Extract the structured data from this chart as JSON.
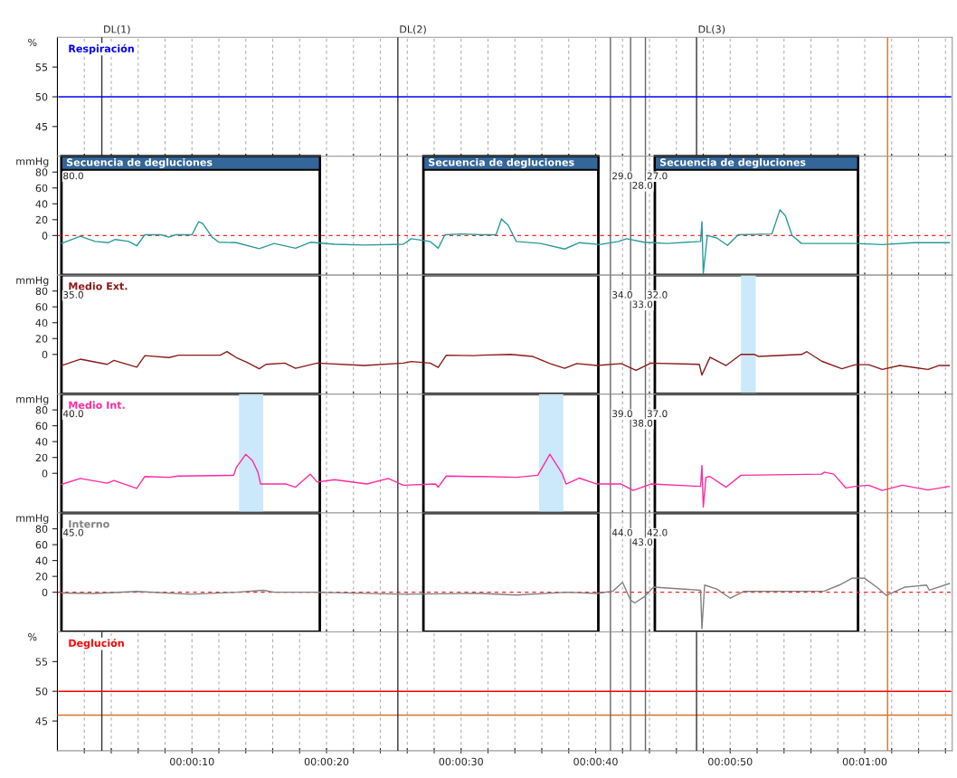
{
  "chart_data": [
    {
      "type": "line",
      "ylabel": "%",
      "xlim": [
        0,
        66.5
      ],
      "ylim": [
        40,
        60
      ],
      "yticks": [
        45,
        50,
        55
      ],
      "grid": "x",
      "tick_labels": "y",
      "xticks": [
        {
          "value": 2,
          "label": null
        },
        {
          "value": 4,
          "label": null
        },
        {
          "value": 6,
          "label": null
        },
        {
          "value": 8,
          "label": null
        },
        {
          "value": 10,
          "label": null
        },
        {
          "value": 12,
          "label": null
        },
        {
          "value": 14,
          "label": null
        },
        {
          "value": 16,
          "label": null
        },
        {
          "value": 18,
          "label": null
        },
        {
          "value": 20,
          "label": null
        },
        {
          "value": 22,
          "label": null
        },
        {
          "value": 24,
          "label": null
        },
        {
          "value": 26,
          "label": null
        },
        {
          "value": 28,
          "label": null
        },
        {
          "value": 30,
          "label": null
        },
        {
          "value": 32,
          "label": null
        },
        {
          "value": 34,
          "label": null
        },
        {
          "value": 36,
          "label": null
        },
        {
          "value": 38,
          "label": null
        },
        {
          "value": 40,
          "label": null
        },
        {
          "value": 42,
          "label": null
        },
        {
          "value": 44,
          "label": null
        },
        {
          "value": 46,
          "label": null
        },
        {
          "value": 48,
          "label": null
        },
        {
          "value": 50,
          "label": null
        },
        {
          "value": 52,
          "label": null
        },
        {
          "value": 54,
          "label": null
        },
        {
          "value": 56,
          "label": null
        },
        {
          "value": 58,
          "label": null
        },
        {
          "value": 60,
          "label": null
        },
        {
          "value": 62,
          "label": null
        },
        {
          "value": 64,
          "label": null
        },
        {
          "value": 66,
          "label": null
        }
      ],
      "series": [
        {
          "name": "Respiración",
          "color": "#0000ff",
          "x": [
            0.1,
            10,
            20,
            30,
            40,
            50,
            60,
            66.4
          ],
          "values": [
            50,
            50,
            50,
            50,
            50,
            50,
            50,
            50
          ]
        }
      ],
      "ref_lines": [
        {
          "axis": "x",
          "value": 3.3,
          "label": "DL(1)",
          "color": "#333333"
        },
        {
          "axis": "x",
          "value": 25.3,
          "label": "DL(2)",
          "color": "#333333"
        },
        {
          "axis": "x",
          "value": 47.5,
          "label": "DL(3)",
          "color": "#333333"
        },
        {
          "axis": "x",
          "value": 41.1,
          "color": "#666666"
        },
        {
          "axis": "x",
          "value": 42.6,
          "color": "#666666"
        },
        {
          "axis": "x",
          "value": 43.7,
          "color": "#666666"
        },
        {
          "axis": "x",
          "value": 61.7,
          "color": "#e0702a"
        }
      ]
    },
    {
      "type": "line",
      "ylabel": "mmHg",
      "xlim": [
        0,
        66.5
      ],
      "ylim": [
        -50,
        100
      ],
      "yticks": [
        0,
        20,
        40,
        60,
        80
      ],
      "grid": "x",
      "tick_labels": "y",
      "xticks": [
        {
          "value": 2,
          "label": null
        },
        {
          "value": 4,
          "label": null
        },
        {
          "value": 6,
          "label": null
        },
        {
          "value": 8,
          "label": null
        },
        {
          "value": 10,
          "label": null
        },
        {
          "value": 12,
          "label": null
        },
        {
          "value": 14,
          "label": null
        },
        {
          "value": 16,
          "label": null
        },
        {
          "value": 18,
          "label": null
        },
        {
          "value": 20,
          "label": null
        },
        {
          "value": 22,
          "label": null
        },
        {
          "value": 24,
          "label": null
        },
        {
          "value": 26,
          "label": null
        },
        {
          "value": 28,
          "label": null
        },
        {
          "value": 30,
          "label": null
        },
        {
          "value": 32,
          "label": null
        },
        {
          "value": 34,
          "label": null
        },
        {
          "value": 36,
          "label": null
        },
        {
          "value": 38,
          "label": null
        },
        {
          "value": 40,
          "label": null
        },
        {
          "value": 42,
          "label": null
        },
        {
          "value": 44,
          "label": null
        },
        {
          "value": 46,
          "label": null
        },
        {
          "value": 48,
          "label": null
        },
        {
          "value": 50,
          "label": null
        },
        {
          "value": 52,
          "label": null
        },
        {
          "value": 54,
          "label": null
        },
        {
          "value": 56,
          "label": null
        },
        {
          "value": 58,
          "label": null
        },
        {
          "value": 60,
          "label": null
        },
        {
          "value": 62,
          "label": null
        },
        {
          "value": 64,
          "label": null
        },
        {
          "value": 66,
          "label": null
        }
      ],
      "series": [
        {
          "color": "#2a9a9a",
          "x": [
            0.3,
            1.7,
            2.8,
            3.8,
            4.3,
            5.3,
            5.9,
            6.5,
            7.7,
            8.3,
            8.8,
            10,
            10.5,
            10.8,
            11.5,
            12,
            13.3,
            15,
            16.1,
            17.7,
            18.8,
            20.6,
            22.8,
            25.7,
            26.3,
            27.7,
            28.3,
            28.8,
            30.1,
            31.5,
            32.6,
            33,
            33.5,
            34.1,
            35.9,
            37.7,
            38.8,
            40.3,
            41.7,
            42.3,
            43.6,
            45.3,
            47.8,
            47.9,
            48,
            48.3,
            49,
            49.8,
            50.6,
            53.1,
            53.7,
            54.1,
            54.6,
            55.3,
            59.3,
            61.3,
            63.7,
            66.3
          ],
          "values": [
            -10,
            -1,
            -7.5,
            -9,
            -5,
            -7.5,
            -13,
            1,
            1,
            -2,
            1,
            1,
            17.5,
            15,
            -2,
            -8.5,
            -9,
            -16.5,
            -10,
            -16,
            -8.5,
            -11,
            -12,
            -11,
            -4,
            -7.5,
            -16,
            1,
            2,
            1,
            1,
            21,
            13,
            -7.5,
            -10,
            -17,
            -9,
            -11.5,
            -7.5,
            -4,
            -8.5,
            -10,
            -7.5,
            17.5,
            -47.5,
            0,
            -3,
            -12.5,
            1,
            2,
            32.5,
            25,
            0,
            -10,
            -10,
            -11.5,
            -9,
            -9
          ]
        }
      ],
      "bands": [
        {
          "axis": "x",
          "from": 0.3,
          "to": 19.5,
          "label": "Secuencia de degluciones",
          "color": "#ffffff"
        },
        {
          "axis": "x",
          "from": 27.2,
          "to": 40.2,
          "label": "Secuencia de degluciones",
          "color": "#ffffff"
        },
        {
          "axis": "x",
          "from": 44.4,
          "to": 59.5,
          "label": "Secuencia de degluciones",
          "color": "#ffffff"
        }
      ],
      "ref_lines": [
        {
          "axis": "y",
          "value": 0,
          "color": "#ff2020",
          "line_style": "dashed"
        },
        {
          "axis": "x",
          "value": 25.3,
          "color": "#333333"
        },
        {
          "axis": "x",
          "value": 41.1,
          "color": "#666666"
        },
        {
          "axis": "x",
          "value": 42.6,
          "color": "#666666"
        },
        {
          "axis": "x",
          "value": 43.7,
          "color": "#666666"
        },
        {
          "axis": "x",
          "value": 61.7,
          "color": "#e0702a"
        }
      ],
      "annotations": [
        {
          "text": "80.0",
          "x": 0.3,
          "y": 80
        },
        {
          "text": "29.0",
          "x": 41.1,
          "y": 80
        },
        {
          "text": "28.0",
          "x": 42.6,
          "y": 68
        },
        {
          "text": "27.0",
          "x": 43.7,
          "y": 80
        }
      ]
    },
    {
      "type": "line",
      "ylabel": "mmHg",
      "xlim": [
        0,
        66.5
      ],
      "ylim": [
        -50,
        100
      ],
      "yticks": [
        0,
        20,
        40,
        60,
        80
      ],
      "grid": "x",
      "tick_labels": "y",
      "xticks": [
        {
          "value": 2,
          "label": null
        },
        {
          "value": 4,
          "label": null
        },
        {
          "value": 6,
          "label": null
        },
        {
          "value": 8,
          "label": null
        },
        {
          "value": 10,
          "label": null
        },
        {
          "value": 12,
          "label": null
        },
        {
          "value": 14,
          "label": null
        },
        {
          "value": 16,
          "label": null
        },
        {
          "value": 18,
          "label": null
        },
        {
          "value": 20,
          "label": null
        },
        {
          "value": 22,
          "label": null
        },
        {
          "value": 24,
          "label": null
        },
        {
          "value": 26,
          "label": null
        },
        {
          "value": 28,
          "label": null
        },
        {
          "value": 30,
          "label": null
        },
        {
          "value": 32,
          "label": null
        },
        {
          "value": 34,
          "label": null
        },
        {
          "value": 36,
          "label": null
        },
        {
          "value": 38,
          "label": null
        },
        {
          "value": 40,
          "label": null
        },
        {
          "value": 42,
          "label": null
        },
        {
          "value": 44,
          "label": null
        },
        {
          "value": 46,
          "label": null
        },
        {
          "value": 48,
          "label": null
        },
        {
          "value": 50,
          "label": null
        },
        {
          "value": 52,
          "label": null
        },
        {
          "value": 54,
          "label": null
        },
        {
          "value": 56,
          "label": null
        },
        {
          "value": 58,
          "label": null
        },
        {
          "value": 60,
          "label": null
        },
        {
          "value": 62,
          "label": null
        },
        {
          "value": 64,
          "label": null
        },
        {
          "value": 66,
          "label": null
        }
      ],
      "series": [
        {
          "name": "Medio Ext.",
          "color": "#8b1a1a",
          "x": [
            0.3,
            1.7,
            3.7,
            4.2,
            5.9,
            6.5,
            8.3,
            9,
            12.1,
            12.6,
            13.3,
            14.1,
            15,
            15.5,
            16.9,
            17.7,
            19.3,
            22.8,
            25.7,
            26.3,
            27.7,
            28.3,
            28.9,
            30.9,
            31.5,
            33.7,
            35.3,
            36.6,
            37.7,
            38.6,
            40.1,
            41.9,
            43,
            44.1,
            47.7,
            47.9,
            48.5,
            49.7,
            50.8,
            51.8,
            52.1,
            55.3,
            55.7,
            56.8,
            58.3,
            59.3,
            60.3,
            61.3,
            62.6,
            64.7,
            65.5,
            66.3
          ],
          "values": [
            -14,
            -6,
            -12.5,
            -7.5,
            -16,
            -1.5,
            -4,
            -1,
            -1,
            3.5,
            -4,
            -10,
            -18,
            -12.5,
            -11,
            -17.5,
            -11,
            -14,
            -11,
            -9,
            -11,
            -16.5,
            -1,
            -1.5,
            -1,
            0,
            -2.5,
            -11.5,
            -17.5,
            -11.5,
            -14,
            -11.5,
            -20,
            -11,
            -12.5,
            -26,
            -3.5,
            -14,
            0,
            0,
            -2.5,
            0,
            3.5,
            -8.5,
            -18,
            -13,
            -13,
            -19,
            -14,
            -19,
            -14,
            -14
          ]
        }
      ],
      "bands": [
        {
          "axis": "x",
          "from": 0.3,
          "to": 19.5,
          "color": "#ffffff"
        },
        {
          "axis": "x",
          "from": 27.2,
          "to": 40.2,
          "color": "#ffffff"
        },
        {
          "axis": "x",
          "from": 44.4,
          "to": 59.5,
          "color": "#ffffff"
        },
        {
          "axis": "x",
          "from": 50.8,
          "to": 51.9,
          "color": "#cce8fb"
        }
      ],
      "ref_lines": [
        {
          "axis": "x",
          "value": 25.3,
          "color": "#333333"
        },
        {
          "axis": "x",
          "value": 41.1,
          "color": "#666666"
        },
        {
          "axis": "x",
          "value": 42.6,
          "color": "#666666"
        },
        {
          "axis": "x",
          "value": 43.7,
          "color": "#666666"
        },
        {
          "axis": "x",
          "value": 61.7,
          "color": "#e0702a"
        }
      ],
      "annotations": [
        {
          "text": "35.0",
          "x": 0.3,
          "y": 80
        },
        {
          "text": "34.0",
          "x": 41.1,
          "y": 80
        },
        {
          "text": "33.0",
          "x": 42.6,
          "y": 68
        },
        {
          "text": "32.0",
          "x": 43.7,
          "y": 80
        }
      ]
    },
    {
      "type": "line",
      "ylabel": "mmHg",
      "xlim": [
        0,
        66.5
      ],
      "ylim": [
        -50,
        100
      ],
      "yticks": [
        0,
        20,
        40,
        60,
        80
      ],
      "grid": "x",
      "tick_labels": "y",
      "xticks": [
        {
          "value": 2,
          "label": null
        },
        {
          "value": 4,
          "label": null
        },
        {
          "value": 6,
          "label": null
        },
        {
          "value": 8,
          "label": null
        },
        {
          "value": 10,
          "label": null
        },
        {
          "value": 12,
          "label": null
        },
        {
          "value": 14,
          "label": null
        },
        {
          "value": 16,
          "label": null
        },
        {
          "value": 18,
          "label": null
        },
        {
          "value": 20,
          "label": null
        },
        {
          "value": 22,
          "label": null
        },
        {
          "value": 24,
          "label": null
        },
        {
          "value": 26,
          "label": null
        },
        {
          "value": 28,
          "label": null
        },
        {
          "value": 30,
          "label": null
        },
        {
          "value": 32,
          "label": null
        },
        {
          "value": 34,
          "label": null
        },
        {
          "value": 36,
          "label": null
        },
        {
          "value": 38,
          "label": null
        },
        {
          "value": 40,
          "label": null
        },
        {
          "value": 42,
          "label": null
        },
        {
          "value": 44,
          "label": null
        },
        {
          "value": 46,
          "label": null
        },
        {
          "value": 48,
          "label": null
        },
        {
          "value": 50,
          "label": null
        },
        {
          "value": 52,
          "label": null
        },
        {
          "value": 54,
          "label": null
        },
        {
          "value": 56,
          "label": null
        },
        {
          "value": 58,
          "label": null
        },
        {
          "value": 60,
          "label": null
        },
        {
          "value": 62,
          "label": null
        },
        {
          "value": 64,
          "label": null
        },
        {
          "value": 66,
          "label": null
        }
      ],
      "series": [
        {
          "name": "Medio Int.",
          "color": "#ff2aa0",
          "x": [
            0.3,
            1.7,
            3.7,
            4.2,
            5.9,
            6.5,
            8.3,
            9,
            13.1,
            13.3,
            14,
            14.5,
            14.9,
            15.1,
            17,
            17.7,
            18.8,
            19.3,
            20.6,
            23,
            24.6,
            25.7,
            28.1,
            28.3,
            28.9,
            30.9,
            31.5,
            34.1,
            35.7,
            36.6,
            37.5,
            37.8,
            38.8,
            40.1,
            41.9,
            42.8,
            44.1,
            47.8,
            47.9,
            48,
            48.2,
            48.5,
            49.7,
            50.8,
            56.8,
            57,
            57.7,
            58.6,
            59.3,
            60.3,
            61.3,
            62.8,
            64.7,
            66.3
          ],
          "values": [
            -14,
            -6.5,
            -12.5,
            -9,
            -19,
            -4,
            -5,
            -3.5,
            -2.5,
            7.5,
            24,
            16,
            1.5,
            -13.5,
            -13.5,
            -17.5,
            -1,
            -11,
            -8,
            -13.5,
            -6.5,
            -15,
            -13.5,
            -17.5,
            -3.5,
            -4,
            -4,
            -5,
            -2.5,
            24,
            0,
            -13.5,
            -6,
            -13.5,
            -13.5,
            -21.5,
            -13.5,
            -16.5,
            10,
            -42.5,
            -5,
            -4,
            -17.5,
            -2.5,
            -1,
            1.5,
            -1,
            -18.5,
            -16.5,
            -15,
            -21.5,
            -15,
            -21,
            -16.5
          ]
        }
      ],
      "bands": [
        {
          "axis": "x",
          "from": 0.3,
          "to": 19.5,
          "color": "#ffffff"
        },
        {
          "axis": "x",
          "from": 27.2,
          "to": 40.2,
          "color": "#ffffff"
        },
        {
          "axis": "x",
          "from": 44.4,
          "to": 59.5,
          "color": "#ffffff"
        },
        {
          "axis": "x",
          "from": 13.5,
          "to": 15.3,
          "color": "#cce8fb"
        },
        {
          "axis": "x",
          "from": 35.8,
          "to": 37.6,
          "color": "#cce8fb"
        }
      ],
      "ref_lines": [
        {
          "axis": "x",
          "value": 25.3,
          "color": "#333333"
        },
        {
          "axis": "x",
          "value": 41.1,
          "color": "#666666"
        },
        {
          "axis": "x",
          "value": 42.6,
          "color": "#666666"
        },
        {
          "axis": "x",
          "value": 43.7,
          "color": "#666666"
        },
        {
          "axis": "x",
          "value": 61.7,
          "color": "#e0702a"
        }
      ],
      "annotations": [
        {
          "text": "40.0",
          "x": 0.3,
          "y": 80
        },
        {
          "text": "39.0",
          "x": 41.1,
          "y": 80
        },
        {
          "text": "38.0",
          "x": 42.6,
          "y": 68
        },
        {
          "text": "37.0",
          "x": 43.7,
          "y": 80
        }
      ]
    },
    {
      "type": "line",
      "ylabel": "mmHg",
      "xlim": [
        0,
        66.5
      ],
      "ylim": [
        -50,
        100
      ],
      "yticks": [
        0,
        20,
        40,
        60,
        80
      ],
      "grid": "x",
      "tick_labels": "y",
      "xticks": [
        {
          "value": 2,
          "label": null
        },
        {
          "value": 4,
          "label": null
        },
        {
          "value": 6,
          "label": null
        },
        {
          "value": 8,
          "label": null
        },
        {
          "value": 10,
          "label": null
        },
        {
          "value": 12,
          "label": null
        },
        {
          "value": 14,
          "label": null
        },
        {
          "value": 16,
          "label": null
        },
        {
          "value": 18,
          "label": null
        },
        {
          "value": 20,
          "label": null
        },
        {
          "value": 22,
          "label": null
        },
        {
          "value": 24,
          "label": null
        },
        {
          "value": 26,
          "label": null
        },
        {
          "value": 28,
          "label": null
        },
        {
          "value": 30,
          "label": null
        },
        {
          "value": 32,
          "label": null
        },
        {
          "value": 34,
          "label": null
        },
        {
          "value": 36,
          "label": null
        },
        {
          "value": 38,
          "label": null
        },
        {
          "value": 40,
          "label": null
        },
        {
          "value": 42,
          "label": null
        },
        {
          "value": 44,
          "label": null
        },
        {
          "value": 46,
          "label": null
        },
        {
          "value": 48,
          "label": null
        },
        {
          "value": 50,
          "label": null
        },
        {
          "value": 52,
          "label": null
        },
        {
          "value": 54,
          "label": null
        },
        {
          "value": 56,
          "label": null
        },
        {
          "value": 58,
          "label": null
        },
        {
          "value": 60,
          "label": null
        },
        {
          "value": 62,
          "label": null
        },
        {
          "value": 64,
          "label": null
        },
        {
          "value": 66,
          "label": null
        }
      ],
      "series": [
        {
          "name": "Interno",
          "color": "#808080",
          "x": [
            0.3,
            2.8,
            5.9,
            9.9,
            13.3,
            15.3,
            16.1,
            19.3,
            25.7,
            30.9,
            31.5,
            34.1,
            37.9,
            40.1,
            41.3,
            42,
            42.6,
            42.9,
            43.6,
            44.3,
            47.8,
            47.9,
            48.1,
            49,
            50,
            51,
            57,
            58.1,
            59.1,
            60,
            61,
            61.6,
            63,
            64.6,
            64.8,
            66.3
          ],
          "values": [
            -1,
            -1.5,
            1,
            -2.5,
            0,
            2.5,
            0,
            0,
            -2.5,
            -1.5,
            -1.5,
            -3.5,
            0,
            -1.5,
            1.5,
            12.5,
            -10,
            -13.5,
            -6,
            6.5,
            2.5,
            -46,
            9,
            4,
            -7.5,
            1,
            1.5,
            9,
            18,
            17.5,
            5,
            -4,
            6.5,
            9,
            2.5,
            11
          ]
        }
      ],
      "bands": [
        {
          "axis": "x",
          "from": 0.3,
          "to": 19.5,
          "color": "#ffffff"
        },
        {
          "axis": "x",
          "from": 27.2,
          "to": 40.2,
          "color": "#ffffff"
        },
        {
          "axis": "x",
          "from": 44.4,
          "to": 59.5,
          "color": "#ffffff"
        }
      ],
      "ref_lines": [
        {
          "axis": "y",
          "value": 0,
          "color": "#ff2020",
          "line_style": "dashed"
        },
        {
          "axis": "x",
          "value": 25.3,
          "color": "#333333"
        },
        {
          "axis": "x",
          "value": 41.1,
          "color": "#666666"
        },
        {
          "axis": "x",
          "value": 42.6,
          "color": "#666666"
        },
        {
          "axis": "x",
          "value": 43.7,
          "color": "#666666"
        },
        {
          "axis": "x",
          "value": 61.7,
          "color": "#e0702a"
        }
      ],
      "annotations": [
        {
          "text": "45.0",
          "x": 0.3,
          "y": 80
        },
        {
          "text": "44.0",
          "x": 41.1,
          "y": 80
        },
        {
          "text": "43.0",
          "x": 42.6,
          "y": 68
        },
        {
          "text": "42.0",
          "x": 43.7,
          "y": 80
        }
      ]
    },
    {
      "type": "line",
      "ylabel": "%",
      "xlim": [
        0,
        66.5
      ],
      "ylim": [
        40,
        60
      ],
      "yticks": [
        45,
        50,
        55
      ],
      "grid": "x",
      "xticks": [
        {
          "value": 2,
          "label": null
        },
        {
          "value": 4,
          "label": null
        },
        {
          "value": 6,
          "label": null
        },
        {
          "value": 8,
          "label": null
        },
        {
          "value": 10,
          "label": "00:00:10"
        },
        {
          "value": 12,
          "label": null
        },
        {
          "value": 14,
          "label": null
        },
        {
          "value": 16,
          "label": null
        },
        {
          "value": 18,
          "label": null
        },
        {
          "value": 20,
          "label": "00:00:20"
        },
        {
          "value": 22,
          "label": null
        },
        {
          "value": 24,
          "label": null
        },
        {
          "value": 26,
          "label": null
        },
        {
          "value": 28,
          "label": null
        },
        {
          "value": 30,
          "label": "00:00:30"
        },
        {
          "value": 32,
          "label": null
        },
        {
          "value": 34,
          "label": null
        },
        {
          "value": 36,
          "label": null
        },
        {
          "value": 38,
          "label": null
        },
        {
          "value": 40,
          "label": "00:00:40"
        },
        {
          "value": 42,
          "label": null
        },
        {
          "value": 44,
          "label": null
        },
        {
          "value": 46,
          "label": null
        },
        {
          "value": 48,
          "label": null
        },
        {
          "value": 50,
          "label": "00:00:50"
        },
        {
          "value": 52,
          "label": null
        },
        {
          "value": 54,
          "label": null
        },
        {
          "value": 56,
          "label": null
        },
        {
          "value": 58,
          "label": null
        },
        {
          "value": 60,
          "label": "00:01:00"
        },
        {
          "value": 62,
          "label": null
        },
        {
          "value": 64,
          "label": null
        },
        {
          "value": 66,
          "label": null
        }
      ],
      "series": [
        {
          "name": "Deglución",
          "color": "#ff0000",
          "x": [
            0.1,
            10,
            20,
            30,
            40,
            50,
            60,
            66.4
          ],
          "values": [
            50,
            50,
            50,
            50,
            50,
            50,
            50,
            50
          ]
        }
      ],
      "ref_lines": [
        {
          "axis": "y",
          "value": 46,
          "color": "#e0702a"
        },
        {
          "axis": "x",
          "value": 3.3,
          "color": "#333333"
        },
        {
          "axis": "x",
          "value": 25.3,
          "color": "#333333"
        },
        {
          "axis": "x",
          "value": 47.5,
          "color": "#333333"
        },
        {
          "axis": "x",
          "value": 41.1,
          "color": "#666666"
        },
        {
          "axis": "x",
          "value": 42.6,
          "color": "#666666"
        },
        {
          "axis": "x",
          "value": 43.7,
          "color": "#666666"
        },
        {
          "axis": "x",
          "value": 61.7,
          "color": "#e0702a"
        }
      ]
    }
  ]
}
